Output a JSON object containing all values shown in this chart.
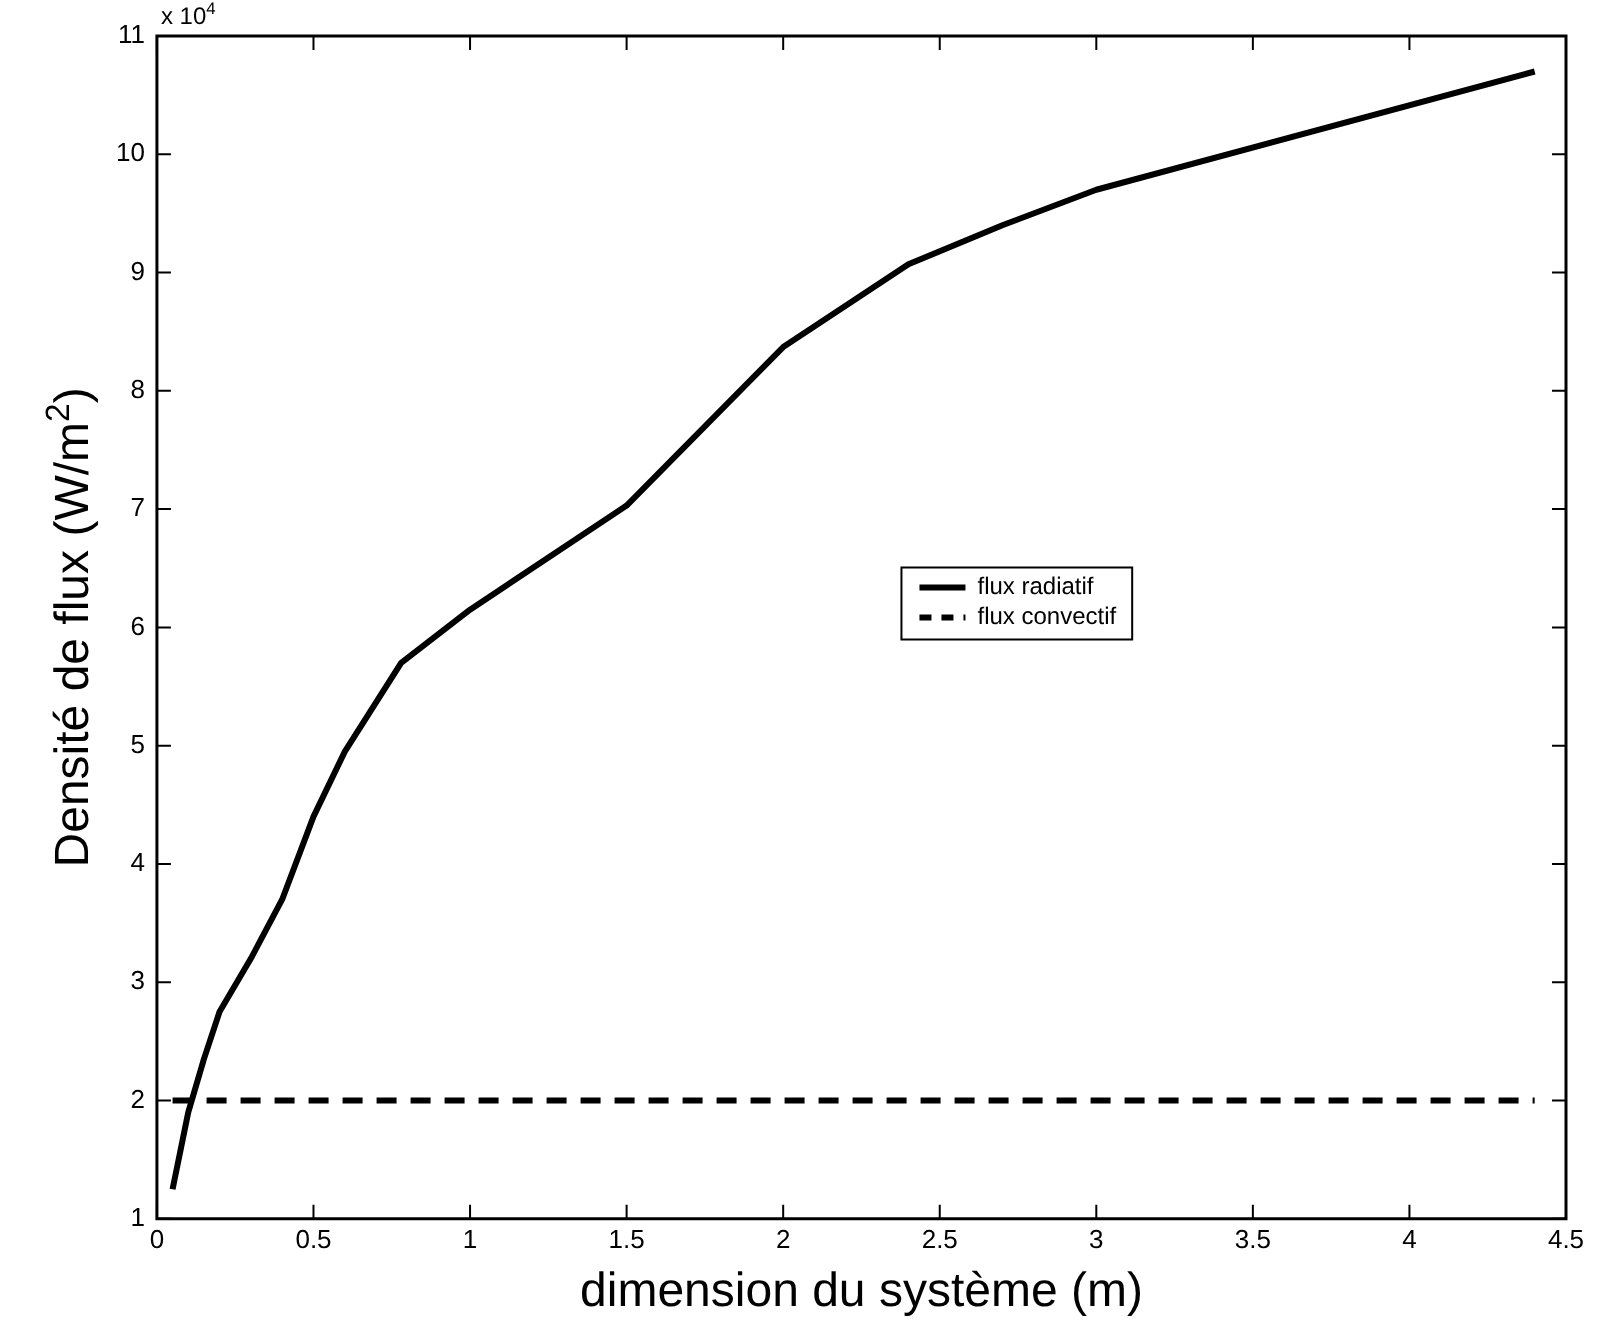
{
  "chart_data": {
    "type": "line",
    "xlabel": "dimension du système (m)",
    "ylabel": "Densité de flux (W/m$^{2}$)",
    "annotations": [
      "x 10$^{4}$"
    ],
    "xlim": [
      0,
      4.5
    ],
    "xticks": [
      0,
      0.5,
      1,
      1.5,
      2,
      2.5,
      3,
      3.5,
      4,
      4.5
    ],
    "ylim": [
      1,
      11
    ],
    "yticks": [
      1,
      2,
      3,
      4,
      5,
      6,
      7,
      8,
      9,
      10,
      11
    ],
    "grid": false,
    "legend": "center",
    "marker": "none",
    "series": [
      {
        "name": "flux radiatif",
        "color": "#000000",
        "line_style": "solid",
        "x": [
          0.05,
          0.1,
          0.15,
          0.2,
          0.3,
          0.4,
          0.5,
          0.6,
          0.78,
          1.0,
          1.5,
          2.0,
          2.4,
          2.7,
          3.0,
          4.4
        ],
        "values": [
          1.25,
          1.9,
          2.35,
          2.75,
          3.2,
          3.7,
          4.4,
          4.95,
          5.7,
          6.15,
          7.03,
          8.37,
          9.07,
          9.4,
          9.7,
          10.7
        ]
      },
      {
        "name": "flux convectif",
        "color": "#000000",
        "line_style": "dashed",
        "x": [
          0.05,
          4.4
        ],
        "values": [
          2,
          2
        ]
      }
    ]
  }
}
